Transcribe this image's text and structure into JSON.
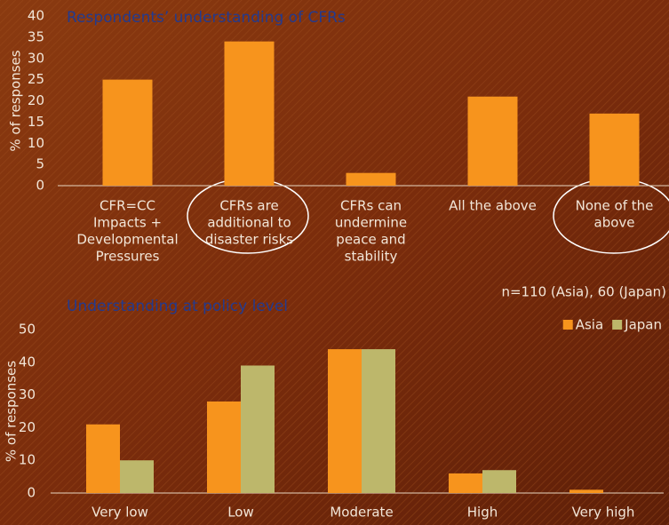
{
  "chart_data": [
    {
      "type": "bar",
      "title": "Respondents’ understanding of CFRs",
      "y_label": "% of responses",
      "categories": [
        [
          "CFR=CC",
          "Impacts +",
          "Developmental",
          "Pressures"
        ],
        [
          "CFRs are",
          "additional to",
          "disaster risks"
        ],
        [
          "CFRs can",
          "undermine",
          "peace and",
          "stability"
        ],
        [
          "All the above"
        ],
        [
          "None of the",
          "above"
        ]
      ],
      "values": [
        25,
        34,
        3,
        21,
        17
      ],
      "color": "#f7941d",
      "ylim": [
        0,
        40
      ],
      "yticks": [
        0,
        5,
        10,
        15,
        20,
        25,
        30,
        35,
        40
      ],
      "grid": false
    },
    {
      "type": "bar",
      "title": "Understanding at policy level",
      "y_label": "% of responses",
      "annotation": "n=110 (Asia), 60 (Japan)",
      "categories": [
        [
          "Very low"
        ],
        [
          "Low"
        ],
        [
          "Moderate"
        ],
        [
          "High"
        ],
        [
          "Very high"
        ]
      ],
      "series": [
        {
          "name": "Asia",
          "color": "#f7941d",
          "values": [
            21,
            28,
            44,
            6,
            1
          ]
        },
        {
          "name": "Japan",
          "color": "#bdb76b",
          "values": [
            10,
            39,
            44,
            7,
            0
          ]
        }
      ],
      "ylim": [
        0,
        50
      ],
      "yticks": [
        0,
        10,
        20,
        30,
        40,
        50
      ],
      "grid": false,
      "legend": "top-right"
    }
  ]
}
